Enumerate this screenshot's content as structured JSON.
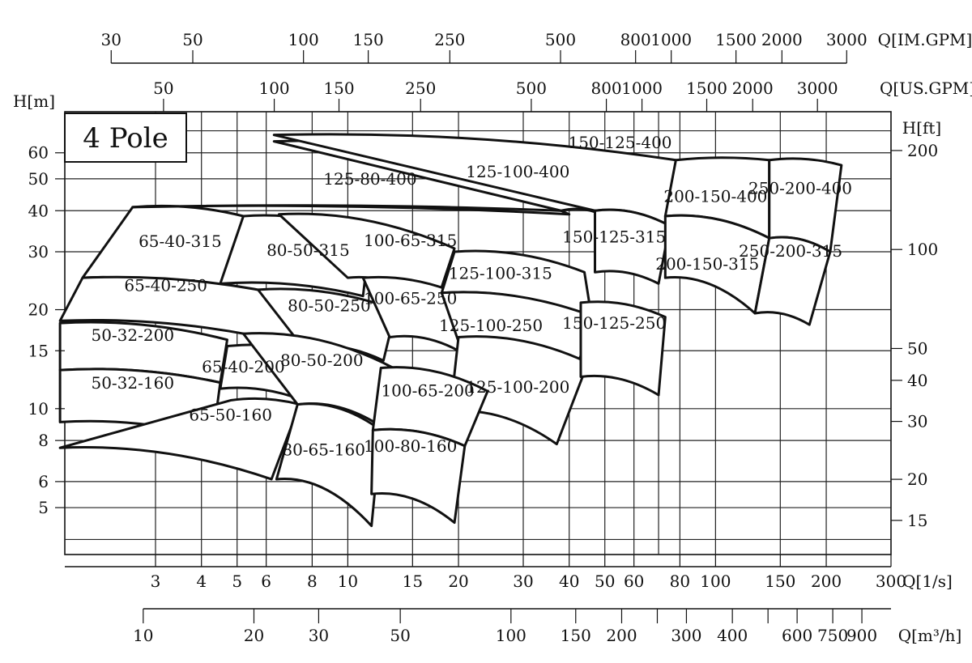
{
  "chart_data": {
    "type": "pump-selection-chart",
    "title": "4 Pole",
    "x_scale": "log",
    "y_scale": "log",
    "axes": {
      "flow_ls": {
        "unit_label": "Q[1/s]",
        "range": [
          1.7,
          300
        ],
        "ticks": [
          {
            "v": 3,
            "label": "3"
          },
          {
            "v": 4,
            "label": "4"
          },
          {
            "v": 5,
            "label": "5"
          },
          {
            "v": 6,
            "label": "6"
          },
          {
            "v": 8,
            "label": "8"
          },
          {
            "v": 10,
            "label": "10"
          },
          {
            "v": 15,
            "label": "15"
          },
          {
            "v": 20,
            "label": "20"
          },
          {
            "v": 30,
            "label": "30"
          },
          {
            "v": 40,
            "label": "40"
          },
          {
            "v": 50,
            "label": "50"
          },
          {
            "v": 60,
            "label": "60"
          },
          {
            "v": 80,
            "label": "80"
          },
          {
            "v": 100,
            "label": "100"
          },
          {
            "v": 150,
            "label": "150"
          },
          {
            "v": 200,
            "label": "200"
          },
          {
            "v": 300,
            "label": "300"
          }
        ],
        "grid": [
          3,
          4,
          5,
          6,
          8,
          10,
          15,
          20,
          30,
          40,
          50,
          60,
          70,
          80,
          100,
          150,
          200
        ]
      },
      "flow_m3h": {
        "unit_label": "Q[m³/h]",
        "ticks": [
          {
            "v": 10,
            "label": "10"
          },
          {
            "v": 20,
            "label": "20"
          },
          {
            "v": 30,
            "label": "30"
          },
          {
            "v": 50,
            "label": "50"
          },
          {
            "v": 100,
            "label": "100"
          },
          {
            "v": 150,
            "label": "150"
          },
          {
            "v": 200,
            "label": "200"
          },
          {
            "v": 250,
            "label": ""
          },
          {
            "v": 300,
            "label": "300"
          },
          {
            "v": 400,
            "label": "400"
          },
          {
            "v": 500,
            "label": ""
          },
          {
            "v": 600,
            "label": "600"
          },
          {
            "v": 750,
            "label": "750"
          },
          {
            "v": 900,
            "label": "900"
          }
        ]
      },
      "flow_imgpm": {
        "unit_label": "Q[IM.GPM]",
        "ticks": [
          {
            "v": 30,
            "label": "30"
          },
          {
            "v": 50,
            "label": "50"
          },
          {
            "v": 100,
            "label": "100"
          },
          {
            "v": 150,
            "label": "150"
          },
          {
            "v": 250,
            "label": "250"
          },
          {
            "v": 500,
            "label": "500"
          },
          {
            "v": 800,
            "label": "800"
          },
          {
            "v": 1000,
            "label": "1000"
          },
          {
            "v": 1500,
            "label": "1500"
          },
          {
            "v": 2000,
            "label": "2000"
          },
          {
            "v": 3000,
            "label": "3000"
          }
        ]
      },
      "flow_usgpm": {
        "unit_label": "Q[US.GPM]",
        "ticks": [
          {
            "v": 50,
            "label": "50"
          },
          {
            "v": 100,
            "label": "100"
          },
          {
            "v": 150,
            "label": "150"
          },
          {
            "v": 250,
            "label": "250"
          },
          {
            "v": 500,
            "label": "500"
          },
          {
            "v": 800,
            "label": "800"
          },
          {
            "v": 1000,
            "label": "1000"
          },
          {
            "v": 1500,
            "label": "1500"
          },
          {
            "v": 2000,
            "label": "2000"
          },
          {
            "v": 3000,
            "label": "3000"
          }
        ]
      },
      "head_m": {
        "unit_label": "H[m]",
        "range": [
          3.6,
          80
        ],
        "ticks": [
          {
            "v": 5,
            "label": "5"
          },
          {
            "v": 6,
            "label": "6"
          },
          {
            "v": 8,
            "label": "8"
          },
          {
            "v": 10,
            "label": "10"
          },
          {
            "v": 15,
            "label": "15"
          },
          {
            "v": 20,
            "label": "20"
          },
          {
            "v": 30,
            "label": "30"
          },
          {
            "v": 40,
            "label": "40"
          },
          {
            "v": 50,
            "label": "50"
          },
          {
            "v": 60,
            "label": "60"
          }
        ],
        "grid": [
          4,
          5,
          6,
          8,
          10,
          15,
          20,
          30,
          40,
          50,
          60,
          70
        ]
      },
      "head_ft": {
        "unit_label": "H[ft]",
        "ticks": [
          {
            "v": 15,
            "label": "15"
          },
          {
            "v": 20,
            "label": "20"
          },
          {
            "v": 30,
            "label": "30"
          },
          {
            "v": 40,
            "label": "40"
          },
          {
            "v": 50,
            "label": "50"
          },
          {
            "v": 100,
            "label": "100"
          },
          {
            "v": 200,
            "label": "200"
          }
        ]
      }
    },
    "pumps": [
      {
        "name": "65-40-315",
        "top": [
          [
            2.6,
            41
          ],
          [
            5.2,
            38.5
          ]
        ],
        "bottom": [
          [
            1.9,
            25
          ],
          [
            4.5,
            21
          ]
        ],
        "label_at": [
          3.5,
          31
        ]
      },
      {
        "name": "65-40-250",
        "top": [
          [
            1.9,
            25
          ],
          [
            7.6,
            21.5
          ]
        ],
        "bottom": [
          [
            1.65,
            18.5
          ],
          [
            7.5,
            15.5
          ]
        ],
        "label_at": [
          3.2,
          22.8
        ]
      },
      {
        "name": "80-50-315",
        "top": [
          [
            5.2,
            38.5
          ],
          [
            11.5,
            33.5
          ]
        ],
        "bottom": [
          [
            4.5,
            24
          ],
          [
            11,
            22
          ]
        ],
        "label_at": [
          7.8,
          29.2
        ]
      },
      {
        "name": "80-50-250",
        "top": [
          [
            5.7,
            23
          ],
          [
            13.5,
            20
          ]
        ],
        "bottom": [
          [
            7.5,
            15.5
          ],
          [
            12.5,
            14
          ]
        ],
        "label_at": [
          8.9,
          19.8
        ]
      },
      {
        "name": "100-65-315",
        "top": [
          [
            6.5,
            39
          ],
          [
            19.5,
            30.7
          ]
        ],
        "bottom": [
          [
            10,
            25
          ],
          [
            17.3,
            20.5
          ]
        ],
        "label_at": [
          14.8,
          31.2
        ]
      },
      {
        "name": "100-65-250",
        "top": [
          [
            11,
            25
          ],
          [
            23.5,
            20.5
          ]
        ],
        "bottom": [
          [
            13,
            16.5
          ],
          [
            20,
            15
          ]
        ],
        "label_at": [
          14.8,
          20.8
        ]
      },
      {
        "name": "125-100-315",
        "top": [
          [
            19.5,
            30
          ],
          [
            44,
            26
          ]
        ],
        "bottom": [
          [
            18,
            22.5
          ],
          [
            46,
            19
          ]
        ],
        "label_at": [
          26,
          24.8
        ]
      },
      {
        "name": "125-100-250",
        "top": [
          [
            18,
            22.5
          ],
          [
            47,
            19
          ]
        ],
        "bottom": [
          [
            20,
            16
          ],
          [
            42,
            13.5
          ]
        ],
        "label_at": [
          24.5,
          17.2
        ]
      },
      {
        "name": "125-100-200",
        "top": [
          [
            20,
            16.5
          ],
          [
            45,
            13.8
          ]
        ],
        "bottom": [
          [
            19,
            9.8
          ],
          [
            37,
            7.8
          ]
        ],
        "label_at": [
          29,
          11.2
        ]
      },
      {
        "name": "50-32-200",
        "top": [
          [
            1.65,
            18.2
          ],
          [
            4.7,
            16.2
          ]
        ],
        "bottom": [
          [
            1.65,
            13.1
          ],
          [
            4.5,
            12
          ]
        ],
        "label_at": [
          2.6,
          16.1
        ]
      },
      {
        "name": "65-40-200",
        "top": [
          [
            4.7,
            15.5
          ],
          [
            8.6,
            14.8
          ]
        ],
        "bottom": [
          [
            4.5,
            11.5
          ],
          [
            8.2,
            10.2
          ]
        ],
        "label_at": [
          5.2,
          12.9
        ]
      },
      {
        "name": "50-32-160",
        "top": [
          [
            1.65,
            13.1
          ],
          [
            4.5,
            12
          ]
        ],
        "bottom": [
          [
            1.65,
            9.1
          ],
          [
            4.3,
            8.2
          ]
        ],
        "label_at": [
          2.6,
          11.5
        ]
      },
      {
        "name": "65-50-160",
        "top": [
          [
            4.8,
            10.6
          ],
          [
            7.4,
            10.3
          ]
        ],
        "bottom": [
          [
            1.65,
            7.6
          ],
          [
            6.2,
            6.1
          ]
        ],
        "label_at": [
          4.8,
          9.2
        ]
      },
      {
        "name": "80-50-200",
        "top": [
          [
            5.2,
            16.9
          ],
          [
            13.3,
            13.3
          ]
        ],
        "bottom": [
          [
            7.3,
            10.3
          ],
          [
            11.8,
            9.1
          ]
        ],
        "label_at": [
          8.5,
          13.5
        ]
      },
      {
        "name": "80-65-160",
        "top": [
          [
            7.3,
            10.3
          ],
          [
            12.3,
            8.6
          ]
        ],
        "bottom": [
          [
            6.4,
            6.1
          ],
          [
            11.6,
            4.4
          ]
        ],
        "label_at": [
          8.6,
          7.2
        ]
      },
      {
        "name": "100-65-200",
        "top": [
          [
            12.3,
            13.3
          ],
          [
            24,
            11.3
          ]
        ],
        "bottom": [
          [
            11.7,
            8.6
          ],
          [
            20.8,
            7.7
          ]
        ],
        "label_at": [
          16.5,
          10.9
        ]
      },
      {
        "name": "100-80-160",
        "top": [
          [
            11.7,
            8.6
          ],
          [
            20.8,
            7.7
          ]
        ],
        "bottom": [
          [
            11.6,
            5.5
          ],
          [
            19.5,
            4.5
          ]
        ],
        "label_at": [
          14.8,
          7.4
        ]
      },
      {
        "name": "125-80-400",
        "top": [
          [
            2.6,
            41
          ],
          [
            40,
            39
          ]
        ],
        "bottom": [
          [
            2.6,
            41
          ],
          [
            38,
            40
          ]
        ],
        "label_at": [
          11.5,
          48
        ]
      },
      {
        "name": "125-100-400",
        "top": [
          [
            6.3,
            65
          ],
          [
            51,
            57
          ]
        ],
        "bottom": [
          [
            38,
            40
          ],
          [
            49,
            39
          ]
        ],
        "label_at": [
          29,
          50.5
        ]
      },
      {
        "name": "150-125-400",
        "top": [
          [
            6.3,
            68
          ],
          [
            78,
            57
          ]
        ],
        "bottom": [
          [
            47,
            40
          ],
          [
            75,
            36
          ]
        ],
        "label_at": [
          55,
          62
        ]
      },
      {
        "name": "150-125-315",
        "top": [
          [
            47,
            40
          ],
          [
            75,
            36
          ]
        ],
        "bottom": [
          [
            47,
            26
          ],
          [
            70,
            24
          ]
        ],
        "label_at": [
          53,
          32
        ]
      },
      {
        "name": "150-125-250",
        "top": [
          [
            43,
            21
          ],
          [
            73,
            19
          ]
        ],
        "bottom": [
          [
            43,
            12.5
          ],
          [
            70,
            11
          ]
        ],
        "label_at": [
          53,
          17.5
        ]
      },
      {
        "name": "200-150-400",
        "top": [
          [
            78,
            57
          ],
          [
            140,
            57
          ]
        ],
        "bottom": [
          [
            73,
            38.5
          ],
          [
            140,
            33
          ]
        ],
        "label_at": [
          100,
          42.5
        ]
      },
      {
        "name": "200-150-315",
        "top": [
          [
            73,
            38.5
          ],
          [
            140,
            33
          ]
        ],
        "bottom": [
          [
            73,
            25
          ],
          [
            128,
            19.5
          ]
        ],
        "label_at": [
          95,
          26.5
        ]
      },
      {
        "name": "250-200-400",
        "top": [
          [
            140,
            57
          ],
          [
            220,
            55
          ]
        ],
        "bottom": [
          [
            140,
            33
          ],
          [
            205,
            30
          ]
        ],
        "label_at": [
          170,
          45
        ]
      },
      {
        "name": "250-200-315",
        "top": [
          [
            140,
            33
          ],
          [
            205,
            30
          ]
        ],
        "bottom": [
          [
            128,
            19.5
          ],
          [
            180,
            18
          ]
        ],
        "label_at": [
          160,
          29
        ]
      }
    ]
  }
}
